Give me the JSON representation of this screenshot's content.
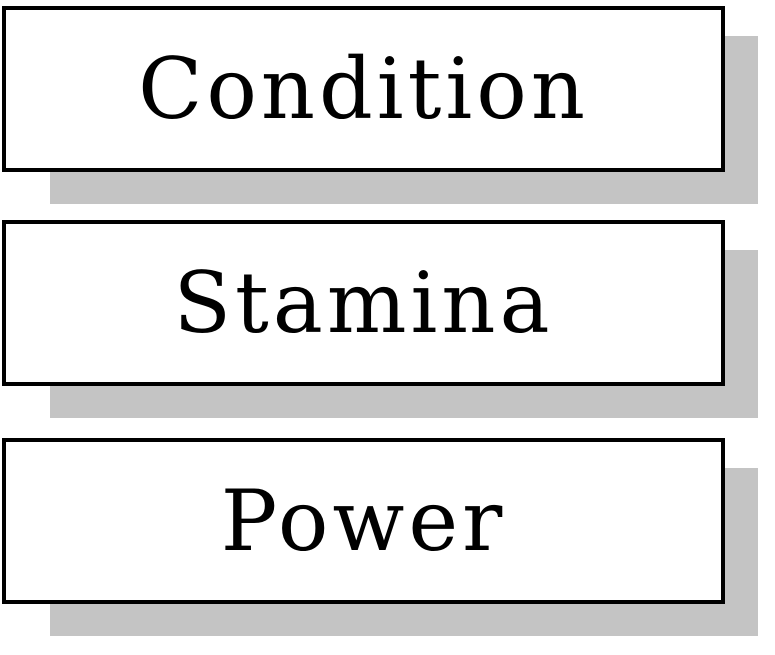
{
  "diagram": {
    "boxes": [
      {
        "label": "Condition"
      },
      {
        "label": "Stamina"
      },
      {
        "label": "Power"
      }
    ]
  },
  "colors": {
    "border": "#000000",
    "shadow": "#c4c4c4",
    "fill": "#ffffff",
    "text": "#000000"
  }
}
